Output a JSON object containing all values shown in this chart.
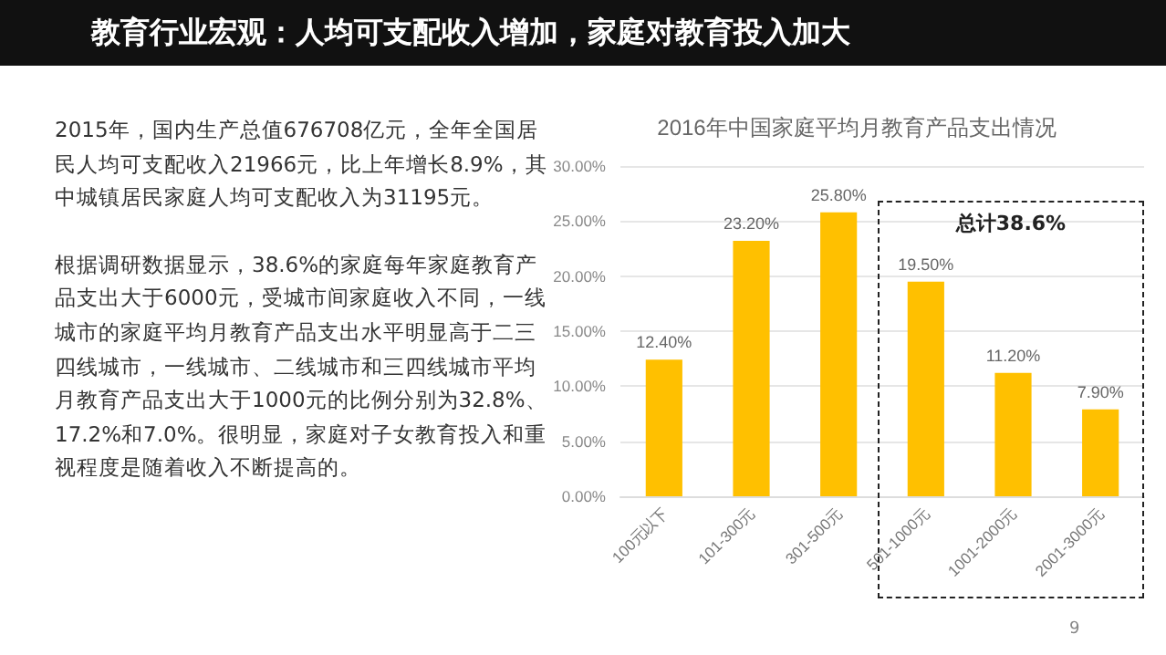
{
  "chart_data": {
    "type": "bar",
    "title": "教育行业宏观：人均可支配收入增加，家庭对教育投入加大",
    "subtitle": "2016年中国家庭平均月教育产品支出情况",
    "categories": [
      "100元以下",
      "101-300元",
      "301-500元",
      "501-1000元",
      "1001-2000元",
      "2001-3000元"
    ],
    "values": [
      12.4,
      23.2,
      25.8,
      19.5,
      11.2,
      7.9
    ],
    "value_labels": [
      "12.40%",
      "23.20%",
      "25.80%",
      "19.50%",
      "11.20%",
      "7.90%"
    ],
    "color": "#ffc000",
    "ylim": [
      0,
      30
    ],
    "yticks": [
      {
        "value": 0,
        "label": "0.00%"
      },
      {
        "value": 5,
        "label": "5.00%"
      },
      {
        "value": 10,
        "label": "10.00%"
      },
      {
        "value": 15,
        "label": "15.00%"
      },
      {
        "value": 20,
        "label": "20.00%"
      },
      {
        "value": 25,
        "label": "25.00%"
      },
      {
        "value": 30,
        "label": "30.00%"
      }
    ],
    "grid": "y",
    "annotations": [
      "2015年，国内生产总值676708亿元，全年全国居民人均可支配收入21966元，比上年增长8.9%，其中城镇居民家庭人均可支配收入为31195元。",
      "根据调研数据显示，38.6%的家庭每年家庭教育产品支出大于6000元，受城市间家庭收入不同，一线城市的家庭平均月教育产品支出水平明显高于二三四线城市，一线城市、二线城市和三四线城市平均月教育产品支出大于1000元的比例分别为32.8%、17.2%和7.0%。很明显，家庭对子女教育投入和重视程度是随着收入不断提高的。",
      "总计38.6%",
      "9"
    ]
  }
}
